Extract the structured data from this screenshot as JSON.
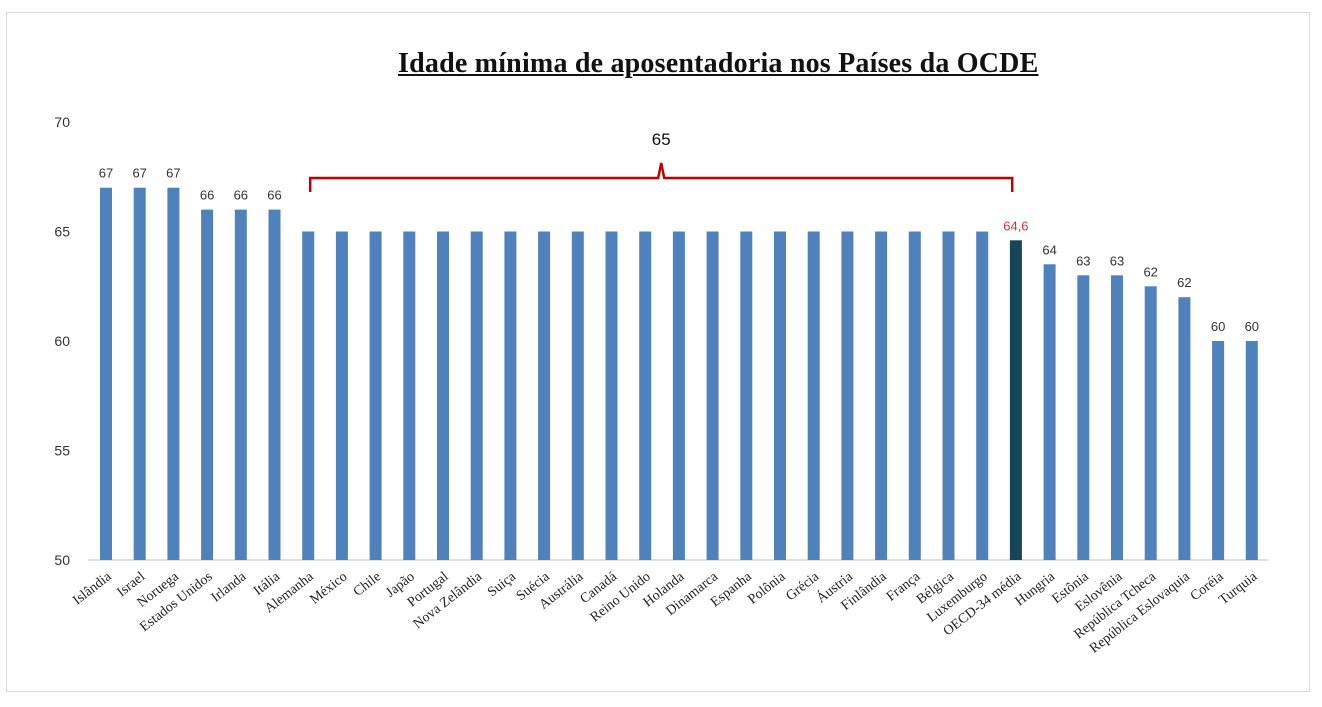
{
  "chart_data": {
    "type": "bar",
    "title": "Idade mínima de aposentadoria nos Países da OCDE",
    "xlabel": "",
    "ylabel": "",
    "ylim": [
      50,
      70
    ],
    "yticks": [
      50,
      55,
      60,
      65,
      70
    ],
    "grid": false,
    "categories": [
      "Islândia",
      "Israel",
      "Noruega",
      "Estados Unidos",
      "Irlanda",
      "Itália",
      "Alemanha",
      "México",
      "Chile",
      "Japão",
      "Portugal",
      "Nova Zelândia",
      "Suiça",
      "Suécia",
      "Austrália",
      "Canadá",
      "Reino Unido",
      "Holanda",
      "Dinamarca",
      "Espanha",
      "Polônia",
      "Grécia",
      "Áustria",
      "Finlândia",
      "França",
      "Bélgica",
      "Luxemburgo",
      "OECD-34 média",
      "Hungria",
      "Estônia",
      "Eslovênia",
      "República Tcheca",
      "República Eslovaquia",
      "Coréia",
      "Turquia"
    ],
    "values": [
      67,
      67,
      67,
      66,
      66,
      66,
      65,
      65,
      65,
      65,
      65,
      65,
      65,
      65,
      65,
      65,
      65,
      65,
      65,
      65,
      65,
      65,
      65,
      65,
      65,
      65,
      65,
      64.6,
      63.5,
      63,
      63,
      62.5,
      62,
      60,
      60
    ],
    "data_labels": [
      "67",
      "67",
      "67",
      "66",
      "66",
      "66",
      "",
      "",
      "",
      "",
      "",
      "",
      "",
      "",
      "",
      "",
      "",
      "",
      "",
      "",
      "",
      "",
      "",
      "",
      "",
      "",
      "",
      "64,6",
      "64",
      "63",
      "63",
      "62",
      "62",
      "60",
      "60"
    ],
    "highlight_index": 27,
    "colors": {
      "bar": "#4f81bd",
      "highlight": "#17465a",
      "highlight_label": "#e03030",
      "bracket": "#c00000",
      "axis": "#bfbfbf"
    },
    "annotations": [
      {
        "type": "bracket",
        "label": "65",
        "from_category": "Alemanha",
        "to_category": "Luxemburgo"
      }
    ]
  }
}
